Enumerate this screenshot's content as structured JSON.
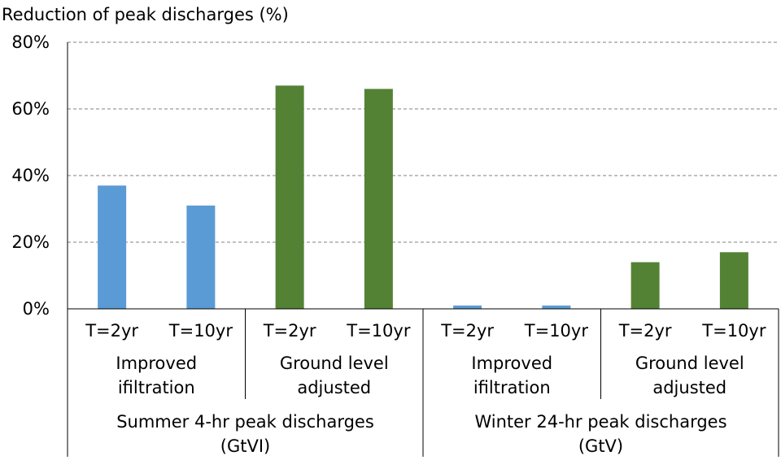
{
  "chart_data": {
    "type": "bar",
    "title": "Reduction of peak discharges (%)",
    "ylim": [
      0,
      80
    ],
    "y_ticks": [
      "0%",
      "20%",
      "40%",
      "60%",
      "80%"
    ],
    "grid": true,
    "categories": [
      "T=2yr",
      "T=10yr",
      "T=2yr",
      "T=10yr",
      "T=2yr",
      "T=10yr",
      "T=2yr",
      "T=10yr"
    ],
    "values": [
      37,
      31,
      67,
      66,
      1,
      1,
      14,
      17
    ],
    "groups": [
      {
        "line1": "Improved",
        "line2": "ifiltration"
      },
      {
        "line1": "Ground level",
        "line2": "adjusted"
      },
      {
        "line1": "Improved",
        "line2": "ifiltration"
      },
      {
        "line1": "Ground level",
        "line2": "adjusted"
      }
    ],
    "seasons": [
      {
        "line1": "Summer 4-hr peak discharges",
        "line2": "(GtVI)"
      },
      {
        "line1": "Winter 24-hr peak discharges",
        "line2": "(GtV)"
      }
    ],
    "colors": {
      "improved": "#5B9BD5",
      "ground": "#548235",
      "grid": "#808080",
      "axis": "#000000"
    }
  }
}
